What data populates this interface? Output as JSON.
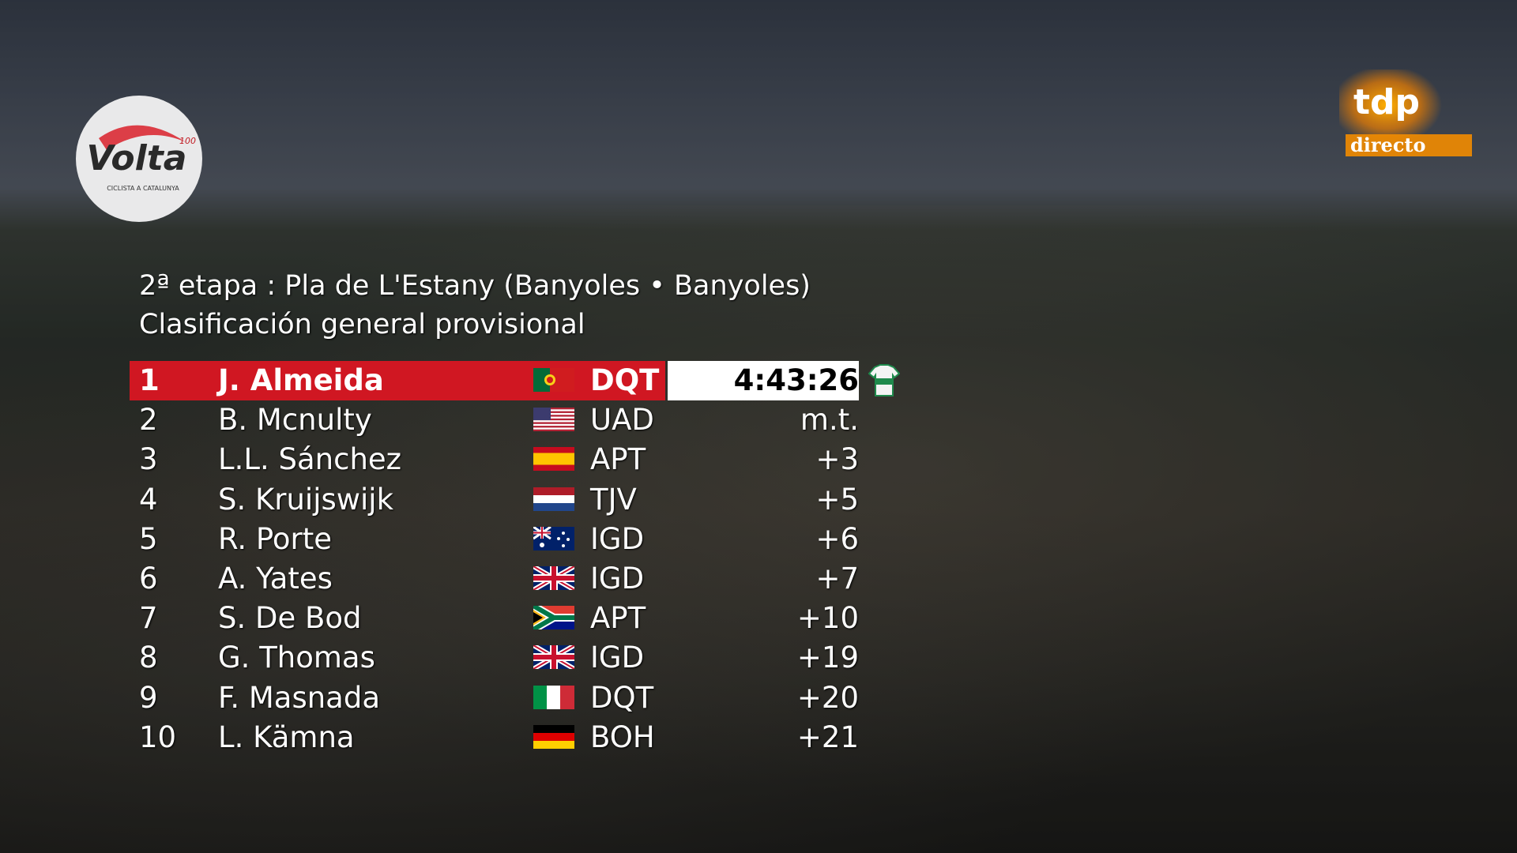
{
  "logos": {
    "volta": {
      "name": "Volta",
      "edition": "100",
      "subtitle": "CICLISTA A CATALUNYA"
    },
    "tdp": {
      "name": "tdp",
      "live": "directo"
    }
  },
  "header": {
    "stage": "2ª etapa : Pla de L'Estany (Banyoles • Banyoles)",
    "classification": "Clasificación general provisional"
  },
  "table": {
    "rows": [
      [
        "1",
        "J. Almeida",
        "DQT",
        "4:43:26"
      ],
      [
        "2",
        "B. Mcnulty",
        "UAD",
        "m.t."
      ],
      [
        "3",
        "L.L. Sánchez",
        "APT",
        "+3"
      ],
      [
        "4",
        "S. Kruijswijk",
        "TJV",
        "+5"
      ],
      [
        "5",
        "R. Porte",
        "IGD",
        "+6"
      ],
      [
        "6",
        "A. Yates",
        "IGD",
        "+7"
      ],
      [
        "7",
        "S. De Bod",
        "APT",
        "+10"
      ],
      [
        "8",
        "G. Thomas",
        "IGD",
        "+19"
      ],
      [
        "9",
        "F. Masnada",
        "DQT",
        "+20"
      ],
      [
        "10",
        "L. Kämna",
        "BOH",
        "+21"
      ]
    ]
  }
}
